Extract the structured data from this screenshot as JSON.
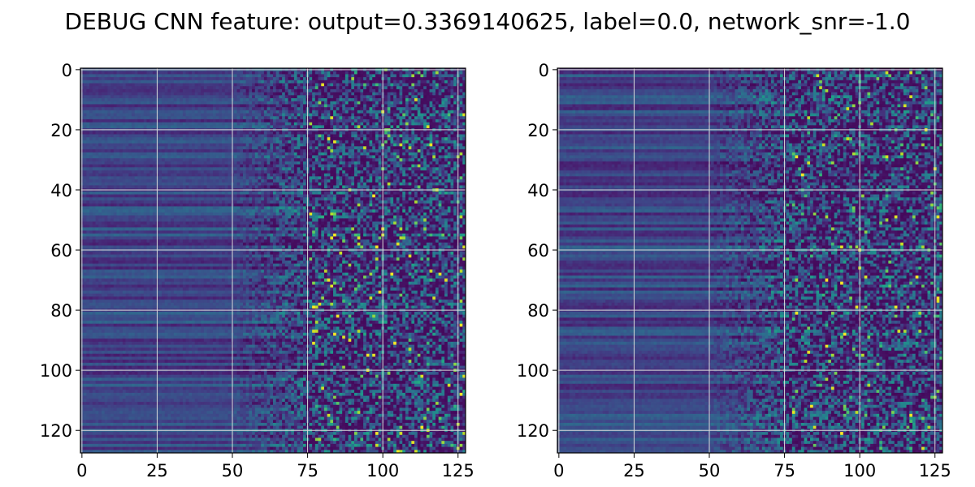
{
  "figure": {
    "title": "DEBUG CNN feature: output=0.3369140625, label=0.0, network_snr=-1.0"
  },
  "chart_data": [
    {
      "type": "heatmap",
      "title": "",
      "xlabel": "",
      "ylabel": "",
      "rows": 128,
      "cols": 128,
      "xlim": [
        -0.5,
        127.5
      ],
      "ylim": [
        127.5,
        -0.5
      ],
      "x_ticks": [
        0,
        25,
        50,
        75,
        100,
        125
      ],
      "y_ticks": [
        0,
        20,
        40,
        60,
        80,
        100,
        120
      ],
      "grid": true,
      "colormap": "viridis"
    },
    {
      "type": "heatmap",
      "title": "",
      "xlabel": "",
      "ylabel": "",
      "rows": 128,
      "cols": 128,
      "xlim": [
        -0.5,
        127.5
      ],
      "ylim": [
        127.5,
        -0.5
      ],
      "x_ticks": [
        0,
        25,
        50,
        75,
        100,
        125
      ],
      "y_ticks": [
        0,
        20,
        40,
        60,
        80,
        100,
        120
      ],
      "grid": true,
      "colormap": "viridis"
    }
  ],
  "colors": {
    "grid": "#d9d9d9",
    "axes": "#000000",
    "viridis_low": "#440154",
    "viridis_high": "#fde725"
  }
}
